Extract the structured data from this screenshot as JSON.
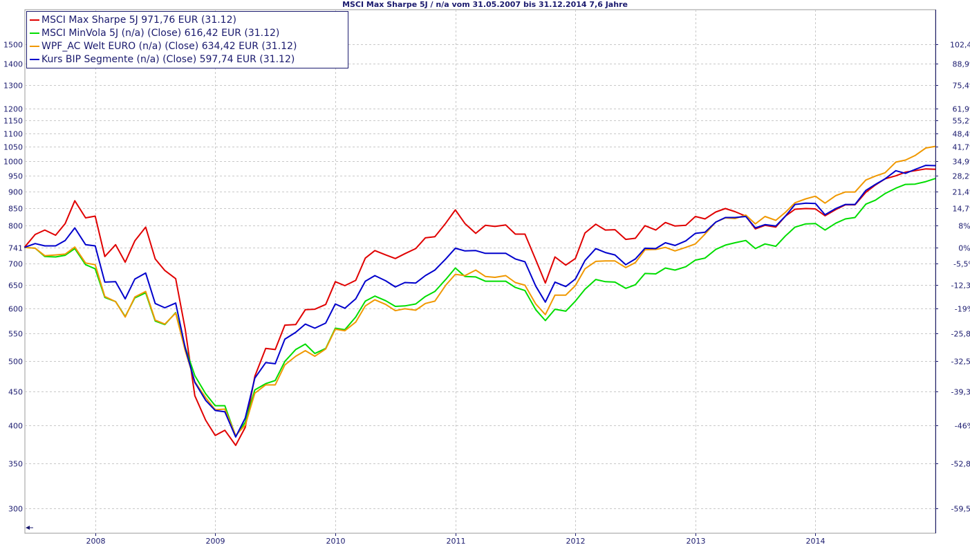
{
  "chart_data": {
    "type": "line",
    "title": "MSCI Max Sharpe 5J / n/a vom 31.05.2007 bis 31.12.2014 7,6 Jahre",
    "y_scale": "log",
    "ylim": [
      275,
      1690
    ],
    "xlim": [
      2007.414,
      2015.0
    ],
    "grid": true,
    "legend_position": "top-left",
    "x_ticks": [
      {
        "value": 2008,
        "label": "2008"
      },
      {
        "value": 2009,
        "label": "2009"
      },
      {
        "value": 2010,
        "label": "2010"
      },
      {
        "value": 2011,
        "label": "2011"
      },
      {
        "value": 2012,
        "label": "2012"
      },
      {
        "value": 2013,
        "label": "2013"
      },
      {
        "value": 2014,
        "label": "2014"
      }
    ],
    "left_ticks": [
      {
        "value": 1500,
        "label": "1500"
      },
      {
        "value": 1400,
        "label": "1400"
      },
      {
        "value": 1300,
        "label": "1300"
      },
      {
        "value": 1200,
        "label": "1200"
      },
      {
        "value": 1150,
        "label": "1150"
      },
      {
        "value": 1100,
        "label": "1100"
      },
      {
        "value": 1050,
        "label": "1050"
      },
      {
        "value": 1000,
        "label": "1000"
      },
      {
        "value": 950,
        "label": "950"
      },
      {
        "value": 900,
        "label": "900"
      },
      {
        "value": 850,
        "label": "850"
      },
      {
        "value": 800,
        "label": "800"
      },
      {
        "value": 741,
        "label": "741"
      },
      {
        "value": 700,
        "label": "700"
      },
      {
        "value": 650,
        "label": "650"
      },
      {
        "value": 600,
        "label": "600"
      },
      {
        "value": 550,
        "label": "550"
      },
      {
        "value": 500,
        "label": "500"
      },
      {
        "value": 450,
        "label": "450"
      },
      {
        "value": 400,
        "label": "400"
      },
      {
        "value": 350,
        "label": "350"
      },
      {
        "value": 300,
        "label": "300"
      }
    ],
    "right_ticks": [
      {
        "value": 1500,
        "label": "102,4%"
      },
      {
        "value": 1400,
        "label": "88,9%"
      },
      {
        "value": 1300,
        "label": "75,4%"
      },
      {
        "value": 1200,
        "label": "61,9%"
      },
      {
        "value": 1150,
        "label": "55,2%"
      },
      {
        "value": 1100,
        "label": "48,4%"
      },
      {
        "value": 1050,
        "label": "41,7%"
      },
      {
        "value": 1000,
        "label": "34,9%"
      },
      {
        "value": 950,
        "label": "28,2%"
      },
      {
        "value": 900,
        "label": "21,4%"
      },
      {
        "value": 850,
        "label": "14,7%"
      },
      {
        "value": 800,
        "label": "8%"
      },
      {
        "value": 741,
        "label": "0%"
      },
      {
        "value": 700,
        "label": "-5,5%"
      },
      {
        "value": 650,
        "label": "-12,3%"
      },
      {
        "value": 600,
        "label": "-19%"
      },
      {
        "value": 550,
        "label": "-25,8%"
      },
      {
        "value": 500,
        "label": "-32,5%"
      },
      {
        "value": 450,
        "label": "-39,3%"
      },
      {
        "value": 400,
        "label": "-46%"
      },
      {
        "value": 350,
        "label": "-52,8%"
      },
      {
        "value": 300,
        "label": "-59,5%"
      }
    ],
    "series": [
      {
        "name": "MSCI Max Sharpe 5J 971,76 EUR (31.12)",
        "color": "#e00000",
        "x": [
          2007.41,
          2007.5,
          2007.58,
          2007.67,
          2007.75,
          2007.83,
          2007.92,
          2008.0,
          2008.08,
          2008.17,
          2008.25,
          2008.33,
          2008.42,
          2008.5,
          2008.58,
          2008.67,
          2008.75,
          2008.83,
          2008.92,
          2009.0,
          2009.08,
          2009.17,
          2009.25,
          2009.33,
          2009.42,
          2009.5,
          2009.58,
          2009.67,
          2009.75,
          2009.83,
          2009.92,
          2010.0,
          2010.08,
          2010.17,
          2010.25,
          2010.33,
          2010.42,
          2010.5,
          2010.58,
          2010.67,
          2010.75,
          2010.83,
          2010.92,
          2011.0,
          2011.08,
          2011.17,
          2011.25,
          2011.33,
          2011.42,
          2011.5,
          2011.58,
          2011.67,
          2011.75,
          2011.83,
          2011.92,
          2012.0,
          2012.08,
          2012.17,
          2012.25,
          2012.33,
          2012.42,
          2012.5,
          2012.58,
          2012.67,
          2012.75,
          2012.83,
          2012.92,
          2013.0,
          2013.08,
          2013.17,
          2013.25,
          2013.33,
          2013.42,
          2013.5,
          2013.58,
          2013.67,
          2013.75,
          2013.83,
          2013.92,
          2014.0,
          2014.08,
          2014.17,
          2014.25,
          2014.33,
          2014.42,
          2014.5,
          2014.58,
          2014.67,
          2014.75,
          2014.83,
          2014.92,
          2015.0
        ],
        "values": [
          741,
          775,
          787,
          773,
          805,
          871,
          821,
          826,
          718,
          748,
          704,
          758,
          795,
          712,
          684,
          665,
          558,
          443,
          407,
          386,
          393,
          373,
          397,
          474,
          522,
          520,
          566,
          567,
          597,
          598,
          608,
          658,
          649,
          661,
          714,
          733,
          722,
          713,
          725,
          738,
          766,
          769,
          806,
          844,
          805,
          778,
          800,
          797,
          801,
          776,
          776,
          710,
          655,
          717,
          697,
          713,
          779,
          803,
          787,
          788,
          762,
          765,
          799,
          787,
          808,
          798,
          800,
          825,
          818,
          838,
          848,
          839,
          826,
          790,
          800,
          795,
          826,
          846,
          848,
          847,
          827,
          845,
          859,
          859,
          897,
          920,
          940,
          950,
          962,
          967,
          973,
          971.76
        ]
      },
      {
        "name": "MSCI MinVola 5J (n/a) (Close) 616,42 EUR (31.12)",
        "color": "#00dd00",
        "x": [
          2007.41,
          2007.5,
          2007.58,
          2007.67,
          2007.75,
          2007.83,
          2007.92,
          2008.0,
          2008.08,
          2008.17,
          2008.25,
          2008.33,
          2008.42,
          2008.5,
          2008.58,
          2008.67,
          2008.75,
          2008.83,
          2008.92,
          2009.0,
          2009.08,
          2009.17,
          2009.25,
          2009.33,
          2009.42,
          2009.5,
          2009.58,
          2009.67,
          2009.75,
          2009.83,
          2009.92,
          2010.0,
          2010.08,
          2010.17,
          2010.25,
          2010.33,
          2010.42,
          2010.5,
          2010.58,
          2010.67,
          2010.75,
          2010.83,
          2010.92,
          2011.0,
          2011.08,
          2011.17,
          2011.25,
          2011.33,
          2011.42,
          2011.5,
          2011.58,
          2011.67,
          2011.75,
          2011.83,
          2011.92,
          2012.0,
          2012.08,
          2012.17,
          2012.25,
          2012.33,
          2012.42,
          2012.5,
          2012.58,
          2012.67,
          2012.75,
          2012.83,
          2012.92,
          2013.0,
          2013.08,
          2013.17,
          2013.25,
          2013.33,
          2013.42,
          2013.5,
          2013.58,
          2013.67,
          2013.75,
          2013.83,
          2013.92,
          2014.0,
          2014.08,
          2014.17,
          2014.25,
          2014.33,
          2014.42,
          2014.5,
          2014.58,
          2014.67,
          2014.75,
          2014.83,
          2014.92,
          2015.0
        ],
        "values": [
          741,
          739,
          718,
          717,
          721,
          738,
          698,
          688,
          623,
          614,
          583,
          622,
          633,
          574,
          567,
          591,
          524,
          475,
          446,
          428,
          428,
          385,
          404,
          452,
          462,
          467,
          499,
          520,
          530,
          513,
          522,
          560,
          557,
          582,
          615,
          626,
          616,
          604,
          605,
          609,
          625,
          636,
          663,
          690,
          670,
          669,
          659,
          659,
          659,
          645,
          638,
          597,
          575,
          598,
          594,
          615,
          641,
          663,
          658,
          657,
          643,
          651,
          677,
          676,
          690,
          685,
          693,
          709,
          714,
          736,
          747,
          753,
          759,
          738,
          750,
          744,
          771,
          795,
          804,
          805,
          787,
          806,
          818,
          822,
          861,
          873,
          893,
          910,
          922,
          923,
          931,
          941
        ]
      },
      {
        "name": "WPF_AC Welt EURO (n/a) (Close) 634,42 EUR (31.12)",
        "color": "#f09800",
        "x": [
          2007.41,
          2007.5,
          2007.58,
          2007.67,
          2007.75,
          2007.83,
          2007.92,
          2008.0,
          2008.08,
          2008.17,
          2008.25,
          2008.33,
          2008.42,
          2008.5,
          2008.58,
          2008.67,
          2008.75,
          2008.83,
          2008.92,
          2009.0,
          2009.08,
          2009.17,
          2009.25,
          2009.33,
          2009.42,
          2009.5,
          2009.58,
          2009.67,
          2009.75,
          2009.83,
          2009.92,
          2010.0,
          2010.08,
          2010.17,
          2010.25,
          2010.33,
          2010.42,
          2010.5,
          2010.58,
          2010.67,
          2010.75,
          2010.83,
          2010.92,
          2011.0,
          2011.08,
          2011.17,
          2011.25,
          2011.33,
          2011.42,
          2011.5,
          2011.58,
          2011.67,
          2011.75,
          2011.83,
          2011.92,
          2012.0,
          2012.08,
          2012.17,
          2012.25,
          2012.33,
          2012.42,
          2012.5,
          2012.58,
          2012.67,
          2012.75,
          2012.83,
          2012.92,
          2013.0,
          2013.08,
          2013.17,
          2013.25,
          2013.33,
          2013.42,
          2013.5,
          2013.58,
          2013.67,
          2013.75,
          2013.83,
          2013.92,
          2014.0,
          2014.08,
          2014.17,
          2014.25,
          2014.33,
          2014.42,
          2014.5,
          2014.58,
          2014.67,
          2014.75,
          2014.83,
          2014.92,
          2015.0
        ],
        "values": [
          741,
          739,
          720,
          722,
          724,
          742,
          702,
          698,
          625,
          614,
          582,
          624,
          636,
          576,
          568,
          590,
          518,
          465,
          440,
          422,
          423,
          386,
          400,
          447,
          460,
          460,
          493,
          508,
          518,
          508,
          521,
          558,
          555,
          572,
          605,
          618,
          608,
          595,
          599,
          596,
          610,
          615,
          650,
          675,
          672,
          685,
          670,
          668,
          672,
          656,
          650,
          609,
          587,
          628,
          628,
          649,
          688,
          706,
          707,
          707,
          691,
          703,
          735,
          736,
          741,
          732,
          741,
          750,
          776,
          809,
          821,
          819,
          829,
          804,
          825,
          814,
          837,
          865,
          877,
          885,
          864,
          887,
          898,
          898,
          936,
          949,
          960,
          996,
          1003,
          1019,
          1046,
          1052
        ]
      },
      {
        "name": "Kurs BIP Segmente (n/a) (Close) 597,74 EUR (31.12)",
        "color": "#0000cc",
        "x": [
          2007.41,
          2007.5,
          2007.58,
          2007.67,
          2007.75,
          2007.83,
          2007.92,
          2008.0,
          2008.08,
          2008.17,
          2008.25,
          2008.33,
          2008.42,
          2008.5,
          2008.58,
          2008.67,
          2008.75,
          2008.83,
          2008.92,
          2009.0,
          2009.08,
          2009.17,
          2009.25,
          2009.33,
          2009.42,
          2009.5,
          2009.58,
          2009.67,
          2009.75,
          2009.83,
          2009.92,
          2010.0,
          2010.08,
          2010.17,
          2010.25,
          2010.33,
          2010.42,
          2010.5,
          2010.58,
          2010.67,
          2010.75,
          2010.83,
          2010.92,
          2011.0,
          2011.08,
          2011.17,
          2011.25,
          2011.33,
          2011.42,
          2011.5,
          2011.58,
          2011.67,
          2011.75,
          2011.83,
          2011.92,
          2012.0,
          2012.08,
          2012.17,
          2012.25,
          2012.33,
          2012.42,
          2012.5,
          2012.58,
          2012.67,
          2012.75,
          2012.83,
          2012.92,
          2013.0,
          2013.08,
          2013.17,
          2013.25,
          2013.33,
          2013.42,
          2013.5,
          2013.58,
          2013.67,
          2013.75,
          2013.83,
          2013.92,
          2014.0,
          2014.08,
          2014.17,
          2014.25,
          2014.33,
          2014.42,
          2014.5,
          2014.58,
          2014.67,
          2014.75,
          2014.83,
          2014.92,
          2015.0
        ],
        "values": [
          741,
          751,
          745,
          745,
          759,
          793,
          748,
          745,
          657,
          658,
          620,
          664,
          678,
          610,
          601,
          611,
          523,
          464,
          436,
          421,
          419,
          384,
          410,
          471,
          497,
          495,
          539,
          552,
          568,
          560,
          570,
          609,
          600,
          620,
          659,
          672,
          660,
          646,
          656,
          655,
          672,
          685,
          712,
          739,
          732,
          733,
          726,
          726,
          726,
          712,
          705,
          648,
          613,
          657,
          647,
          664,
          708,
          738,
          728,
          722,
          698,
          712,
          739,
          738,
          753,
          746,
          758,
          778,
          781,
          809,
          822,
          822,
          825,
          793,
          802,
          798,
          826,
          860,
          864,
          863,
          830,
          848,
          860,
          860,
          903,
          922,
          940,
          967,
          958,
          971,
          985,
          984
        ]
      }
    ]
  }
}
